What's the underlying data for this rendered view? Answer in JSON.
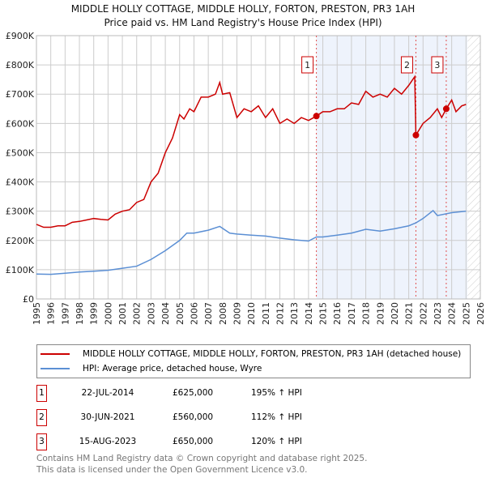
{
  "chart_data": {
    "type": "line",
    "title": "MIDDLE HOLLY COTTAGE, MIDDLE HOLLY, FORTON, PRESTON, PR3 1AH",
    "subtitle": "Price paid vs. HM Land Registry's House Price Index (HPI)",
    "xlim": [
      1995,
      2026
    ],
    "ylim": [
      0,
      900000
    ],
    "x_ticks": [
      "1995",
      "1996",
      "1997",
      "1998",
      "1999",
      "2000",
      "2001",
      "2002",
      "2003",
      "2004",
      "2005",
      "2006",
      "2007",
      "2008",
      "2009",
      "2010",
      "2011",
      "2012",
      "2013",
      "2014",
      "2015",
      "2016",
      "2017",
      "2018",
      "2019",
      "2020",
      "2021",
      "2022",
      "2023",
      "2024",
      "2025",
      "2026"
    ],
    "y_ticks": [
      {
        "v": 0,
        "l": "£0"
      },
      {
        "v": 100000,
        "l": "£100K"
      },
      {
        "v": 200000,
        "l": "£200K"
      },
      {
        "v": 300000,
        "l": "£300K"
      },
      {
        "v": 400000,
        "l": "£400K"
      },
      {
        "v": 500000,
        "l": "£500K"
      },
      {
        "v": 600000,
        "l": "£600K"
      },
      {
        "v": 700000,
        "l": "£700K"
      },
      {
        "v": 800000,
        "l": "£800K"
      },
      {
        "v": 900000,
        "l": "£900K"
      }
    ],
    "grid": true,
    "shaded_range": [
      2014.55,
      2025.1
    ],
    "hatched_from": 2025.1,
    "series": [
      {
        "name": "MIDDLE HOLLY COTTAGE, MIDDLE HOLLY, FORTON, PRESTON, PR3 1AH (detached house)",
        "color": "#cc0000",
        "x": [
          1995,
          1995.5,
          1996,
          1996.5,
          1997,
          1997.5,
          1998,
          1998.5,
          1999,
          1999.5,
          2000,
          2000.5,
          2001,
          2001.5,
          2002,
          2002.5,
          2003,
          2003.5,
          2004,
          2004.5,
          2005,
          2005.3,
          2005.7,
          2006,
          2006.5,
          2007,
          2007.5,
          2007.8,
          2008,
          2008.5,
          2009,
          2009.5,
          2010,
          2010.5,
          2011,
          2011.5,
          2012,
          2012.5,
          2013,
          2013.5,
          2014,
          2014.55,
          2015,
          2015.5,
          2016,
          2016.5,
          2017,
          2017.5,
          2018,
          2018.5,
          2019,
          2019.5,
          2020,
          2020.5,
          2021,
          2021.42,
          2021.5,
          2022,
          2022.5,
          2023,
          2023.3,
          2023.62,
          2024,
          2024.3,
          2024.7,
          2025
        ],
        "y": [
          255000,
          245000,
          245000,
          250000,
          250000,
          262000,
          265000,
          270000,
          275000,
          272000,
          270000,
          290000,
          300000,
          305000,
          330000,
          340000,
          400000,
          430000,
          500000,
          550000,
          630000,
          615000,
          650000,
          640000,
          690000,
          690000,
          700000,
          740000,
          700000,
          705000,
          620000,
          650000,
          640000,
          660000,
          620000,
          650000,
          600000,
          615000,
          600000,
          620000,
          610000,
          625000,
          640000,
          640000,
          650000,
          650000,
          670000,
          665000,
          710000,
          690000,
          700000,
          690000,
          720000,
          700000,
          730000,
          760000,
          560000,
          600000,
          620000,
          650000,
          620000,
          650000,
          680000,
          640000,
          660000,
          665000
        ]
      },
      {
        "name": "HPI: Average price, detached house, Wyre",
        "color": "#5b8fd4",
        "x": [
          1995,
          1996,
          1997,
          1998,
          1999,
          2000,
          2001,
          2002,
          2003,
          2004,
          2005,
          2005.5,
          2006,
          2007,
          2007.8,
          2008.5,
          2009,
          2010,
          2011,
          2012,
          2013,
          2014,
          2014.55,
          2015,
          2016,
          2017,
          2018,
          2019,
          2020,
          2021,
          2021.5,
          2022,
          2022.7,
          2023,
          2024,
          2025
        ],
        "y": [
          85000,
          84000,
          88000,
          92000,
          95000,
          98000,
          105000,
          112000,
          135000,
          165000,
          200000,
          225000,
          225000,
          235000,
          248000,
          225000,
          222000,
          218000,
          215000,
          208000,
          202000,
          198000,
          212000,
          212000,
          218000,
          225000,
          238000,
          232000,
          240000,
          250000,
          260000,
          275000,
          302000,
          285000,
          295000,
          300000
        ]
      }
    ],
    "sales": [
      {
        "label": "1",
        "x": 2014.55,
        "y": 625000,
        "date": "22-JUL-2014",
        "price": "£625,000",
        "hpi": "195% ↑ HPI"
      },
      {
        "label": "2",
        "x": 2021.5,
        "y": 560000,
        "date": "30-JUN-2021",
        "price": "£560,000",
        "hpi": "112% ↑ HPI"
      },
      {
        "label": "3",
        "x": 2023.62,
        "y": 650000,
        "date": "15-AUG-2023",
        "price": "£650,000",
        "hpi": "120% ↑ HPI"
      }
    ]
  },
  "footer": {
    "line1": "Contains HM Land Registry data © Crown copyright and database right 2025.",
    "line2": "This data is licensed under the Open Government Licence v3.0."
  }
}
